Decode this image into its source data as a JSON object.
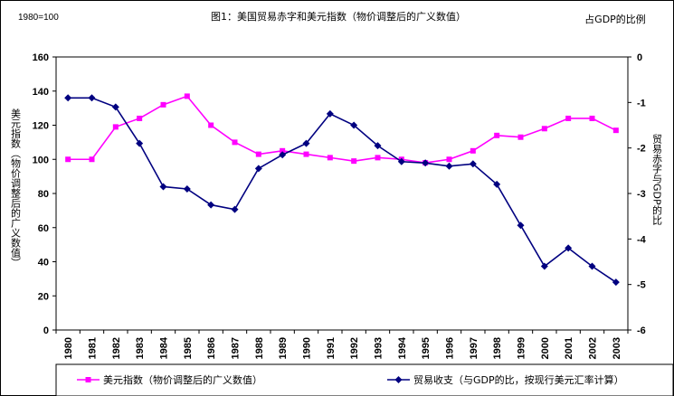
{
  "chart_data": {
    "type": "line",
    "title": "图1：美国贸易赤字和美元指数（物价调整后的广义数值）",
    "base_note": "1980=100",
    "right_axis_note": "占GDP的比例",
    "ylabel_left": "美元指数（物价调整后的广义数值）",
    "ylabel_right": "贸易赤字与GDP的比",
    "x": [
      "1980",
      "1981",
      "1982",
      "1983",
      "1984",
      "1985",
      "1986",
      "1987",
      "1988",
      "1989",
      "1990",
      "1991",
      "1992",
      "1993",
      "1994",
      "1995",
      "1996",
      "1997",
      "1998",
      "1999",
      "2000",
      "2001",
      "2002",
      "2003"
    ],
    "ylim_left": [
      0,
      160
    ],
    "yticks_left": [
      "0",
      "20",
      "40",
      "60",
      "80",
      "100",
      "120",
      "140",
      "160"
    ],
    "ylim_right": [
      -6,
      0
    ],
    "yticks_right": [
      "0",
      "-1",
      "-2",
      "-3",
      "-4",
      "-5",
      "-6"
    ],
    "grid": false,
    "legend_position": "bottom",
    "series": [
      {
        "name": "美元指数（物价调整后的广义数值）",
        "axis": "left",
        "color": "#ff00ff",
        "marker": "square",
        "values": [
          100,
          100,
          119,
          124,
          132,
          137,
          120,
          110,
          103,
          105,
          103,
          101,
          99,
          101,
          100,
          98,
          100,
          105,
          114,
          113,
          118,
          124,
          124,
          117
        ]
      },
      {
        "name": "贸易收支（与GDP的比，按现行美元汇率计算）",
        "axis": "right",
        "color": "#000080",
        "marker": "diamond",
        "values": [
          -0.9,
          -0.9,
          -1.1,
          -1.9,
          -2.85,
          -2.9,
          -3.25,
          -3.35,
          -2.45,
          -2.15,
          -1.9,
          -1.25,
          -1.5,
          -1.95,
          -2.3,
          -2.33,
          -2.4,
          -2.35,
          -2.8,
          -3.7,
          -4.6,
          -4.2,
          -4.6,
          -4.95
        ]
      }
    ]
  }
}
